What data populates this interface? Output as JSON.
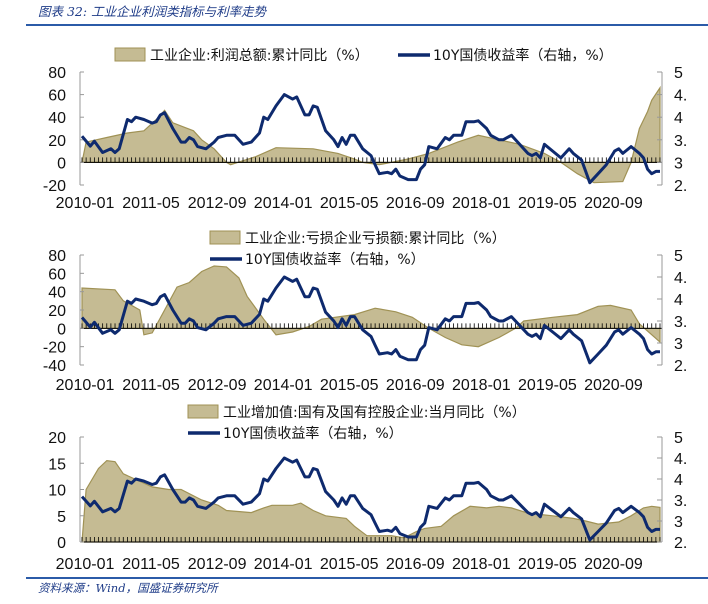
{
  "header": {
    "title": "图表 32:  工业企业利润类指标与利率走势"
  },
  "footer": {
    "source": "资料来源：Wind，国盛证券研究所"
  },
  "colors": {
    "area_fill": "#C5BB93",
    "area_stroke": "#A09255",
    "line": "#0E2A6E",
    "rule": "#2B5BA8"
  },
  "chart_data": [
    {
      "type": "area+line",
      "x_start": "2010-01",
      "x_unit": "months since 2010-01",
      "x_ticklabels": [
        "2010-01",
        "2011-05",
        "2012-09",
        "2014-01",
        "2015-05",
        "2016-09",
        "2018-01",
        "2019-05",
        "2020-09"
      ],
      "ylim": [
        -20,
        80
      ],
      "yticks": [
        "80",
        "60",
        "40",
        "20",
        "0",
        "-20"
      ],
      "y2lim": [
        2.5,
        5
      ],
      "y2ticks": [
        "5",
        "4.",
        "4",
        "3.",
        "3",
        "2."
      ],
      "legend": [
        "工业企业:利润总额:累计同比（%）",
        "10Y国债收益率（右轴，%）"
      ],
      "legend_placement": "top-inline",
      "area_series": {
        "name": "工业企业:利润总额:累计同比（%）",
        "points": [
          [
            0,
            0
          ],
          [
            1,
            18
          ],
          [
            6,
            22
          ],
          [
            11,
            26
          ],
          [
            15,
            28
          ],
          [
            18,
            38
          ],
          [
            20,
            46
          ],
          [
            22,
            35
          ],
          [
            27,
            28
          ],
          [
            29,
            20
          ],
          [
            32,
            12
          ],
          [
            35,
            0
          ],
          [
            36,
            -2
          ],
          [
            42,
            5
          ],
          [
            47,
            13
          ],
          [
            56,
            12
          ],
          [
            62,
            8
          ],
          [
            66,
            3
          ],
          [
            68,
            0
          ],
          [
            72,
            -2
          ],
          [
            79,
            3
          ],
          [
            84,
            8
          ],
          [
            91,
            18
          ],
          [
            96,
            24
          ],
          [
            101,
            20
          ],
          [
            106,
            16
          ],
          [
            112,
            8
          ],
          [
            116,
            0
          ],
          [
            120,
            -10
          ],
          [
            124,
            -18
          ],
          [
            131,
            -17
          ],
          [
            133,
            0
          ],
          [
            135,
            30
          ],
          [
            137,
            45
          ],
          [
            138,
            55
          ],
          [
            140,
            66
          ]
        ]
      },
      "line_series": "yield_10y"
    },
    {
      "type": "area+line",
      "x_start": "2010-01",
      "x_unit": "months since 2010-01",
      "x_ticklabels": [
        "2010-01",
        "2011-05",
        "2012-09",
        "2014-01",
        "2015-05",
        "2016-09",
        "2018-01",
        "2019-05",
        "2020-09"
      ],
      "ylim": [
        -40,
        80
      ],
      "yticks": [
        "80",
        "60",
        "40",
        "20",
        "0",
        "-20",
        "-40"
      ],
      "y2lim": [
        2.5,
        5
      ],
      "y2ticks": [
        "5",
        "4.",
        "4",
        "3.",
        "3",
        "2."
      ],
      "legend": [
        "工业企业:亏损企业亏损额:累计同比（%）",
        "10Y国债收益率（右轴，%）"
      ],
      "legend_placement": "top-stacked",
      "area_series": {
        "name": "工业企业:亏损企业亏损额:累计同比（%）",
        "points": [
          [
            0,
            44
          ],
          [
            8,
            42
          ],
          [
            10,
            30
          ],
          [
            14,
            20
          ],
          [
            15,
            -7
          ],
          [
            17,
            -5
          ],
          [
            20,
            20
          ],
          [
            23,
            45
          ],
          [
            26,
            50
          ],
          [
            29,
            62
          ],
          [
            32,
            68
          ],
          [
            35,
            67
          ],
          [
            38,
            55
          ],
          [
            40,
            35
          ],
          [
            44,
            10
          ],
          [
            47,
            -7
          ],
          [
            51,
            -4
          ],
          [
            55,
            2
          ],
          [
            58,
            10
          ],
          [
            66,
            15
          ],
          [
            71,
            22
          ],
          [
            76,
            18
          ],
          [
            80,
            12
          ],
          [
            84,
            0
          ],
          [
            88,
            -10
          ],
          [
            92,
            -18
          ],
          [
            96,
            -20
          ],
          [
            101,
            -10
          ],
          [
            105,
            0
          ],
          [
            107,
            8
          ],
          [
            114,
            12
          ],
          [
            120,
            15
          ],
          [
            125,
            24
          ],
          [
            128,
            25
          ],
          [
            133,
            20
          ],
          [
            135,
            5
          ],
          [
            140,
            -15
          ]
        ]
      },
      "line_series": "yield_10y"
    },
    {
      "type": "area+line",
      "x_start": "2010-01",
      "x_unit": "months since 2010-01",
      "x_ticklabels": [
        "2010-01",
        "2011-05",
        "2012-09",
        "2014-01",
        "2015-05",
        "2016-09",
        "2018-01",
        "2019-05",
        "2020-09"
      ],
      "ylim": [
        0,
        20
      ],
      "yticks": [
        "20",
        "15",
        "10",
        "5",
        "0"
      ],
      "y2lim": [
        2.5,
        5
      ],
      "y2ticks": [
        "5",
        "4.",
        "4",
        "3.",
        "3",
        "2."
      ],
      "legend": [
        "工业增加值:国有及国有控股企业:当月同比（%）",
        "10Y国债收益率（右轴，%）"
      ],
      "legend_placement": "top-stacked",
      "area_series": {
        "name": "工业增加值:国有及国有控股企业:当月同比（%）",
        "points": [
          [
            0,
            0
          ],
          [
            1,
            10
          ],
          [
            4,
            14
          ],
          [
            6,
            15.5
          ],
          [
            8,
            15.3
          ],
          [
            10,
            13
          ],
          [
            17,
            10.5
          ],
          [
            21,
            10
          ],
          [
            24,
            10
          ],
          [
            29,
            8
          ],
          [
            33,
            7
          ],
          [
            35,
            6
          ],
          [
            41,
            5.6
          ],
          [
            44,
            6.5
          ],
          [
            46,
            7
          ],
          [
            51,
            7
          ],
          [
            53,
            7.4
          ],
          [
            56,
            6
          ],
          [
            59,
            5
          ],
          [
            64,
            4.5
          ],
          [
            66,
            3
          ],
          [
            69,
            1.2
          ],
          [
            75,
            1.2
          ],
          [
            78,
            0.8
          ],
          [
            81,
            2
          ],
          [
            83,
            2.6
          ],
          [
            87,
            3
          ],
          [
            90,
            5
          ],
          [
            94,
            6.8
          ],
          [
            98,
            6.5
          ],
          [
            101,
            6.8
          ],
          [
            104,
            6.5
          ],
          [
            108,
            5.5
          ],
          [
            114,
            5
          ],
          [
            119,
            4.5
          ],
          [
            122,
            4
          ],
          [
            125,
            3.4
          ],
          [
            130,
            3.8
          ],
          [
            133,
            5
          ],
          [
            136,
            6.5
          ],
          [
            138,
            6.8
          ],
          [
            140,
            6.6
          ]
        ]
      },
      "line_series": "yield_10y"
    }
  ],
  "yield_10y": {
    "name": "10Y国债收益率（右轴，%）",
    "points": [
      [
        0,
        3.58
      ],
      [
        2,
        3.36
      ],
      [
        3,
        3.47
      ],
      [
        5,
        3.22
      ],
      [
        7,
        3.3
      ],
      [
        8,
        3.22
      ],
      [
        9,
        3.3
      ],
      [
        11,
        3.95
      ],
      [
        12,
        3.9
      ],
      [
        13,
        4.0
      ],
      [
        15,
        3.95
      ],
      [
        17,
        3.87
      ],
      [
        18,
        3.9
      ],
      [
        19,
        4.05
      ],
      [
        20,
        4.1
      ],
      [
        22,
        3.75
      ],
      [
        24,
        3.45
      ],
      [
        25,
        3.45
      ],
      [
        26,
        3.55
      ],
      [
        27,
        3.5
      ],
      [
        28,
        3.35
      ],
      [
        30,
        3.3
      ],
      [
        32,
        3.45
      ],
      [
        33,
        3.55
      ],
      [
        35,
        3.6
      ],
      [
        37,
        3.6
      ],
      [
        39,
        3.4
      ],
      [
        41,
        3.45
      ],
      [
        43,
        3.65
      ],
      [
        44,
        4.0
      ],
      [
        45,
        3.95
      ],
      [
        47,
        4.25
      ],
      [
        49,
        4.5
      ],
      [
        51,
        4.4
      ],
      [
        52,
        4.45
      ],
      [
        53,
        4.25
      ],
      [
        54,
        4.05
      ],
      [
        55,
        4.05
      ],
      [
        56,
        4.25
      ],
      [
        57,
        4.22
      ],
      [
        59,
        3.7
      ],
      [
        61,
        3.5
      ],
      [
        62,
        3.35
      ],
      [
        63,
        3.55
      ],
      [
        64,
        3.4
      ],
      [
        65,
        3.6
      ],
      [
        66,
        3.6
      ],
      [
        68,
        3.3
      ],
      [
        70,
        3.15
      ],
      [
        71,
        2.95
      ],
      [
        72,
        2.75
      ],
      [
        74,
        2.78
      ],
      [
        75,
        2.75
      ],
      [
        76,
        2.85
      ],
      [
        77,
        2.7
      ],
      [
        79,
        2.62
      ],
      [
        81,
        2.62
      ],
      [
        82,
        2.85
      ],
      [
        83,
        2.95
      ],
      [
        84,
        3.35
      ],
      [
        86,
        3.3
      ],
      [
        88,
        3.55
      ],
      [
        89,
        3.5
      ],
      [
        90,
        3.6
      ],
      [
        92,
        3.6
      ],
      [
        93,
        3.9
      ],
      [
        95,
        3.9
      ],
      [
        96,
        3.92
      ],
      [
        98,
        3.75
      ],
      [
        99,
        3.6
      ],
      [
        101,
        3.5
      ],
      [
        102,
        3.5
      ],
      [
        104,
        3.6
      ],
      [
        106,
        3.4
      ],
      [
        108,
        3.2
      ],
      [
        109,
        3.15
      ],
      [
        110,
        3.2
      ],
      [
        111,
        3.1
      ],
      [
        112,
        3.4
      ],
      [
        114,
        3.25
      ],
      [
        116,
        3.1
      ],
      [
        118,
        3.3
      ],
      [
        119,
        3.2
      ],
      [
        121,
        3.05
      ],
      [
        122,
        2.8
      ],
      [
        123,
        2.55
      ],
      [
        125,
        2.75
      ],
      [
        127,
        2.95
      ],
      [
        129,
        3.25
      ],
      [
        130,
        3.3
      ],
      [
        131,
        3.2
      ],
      [
        133,
        3.35
      ],
      [
        135,
        3.2
      ],
      [
        136,
        3.1
      ],
      [
        137,
        2.85
      ],
      [
        138,
        2.75
      ],
      [
        139,
        2.8
      ],
      [
        140,
        2.8
      ]
    ]
  }
}
